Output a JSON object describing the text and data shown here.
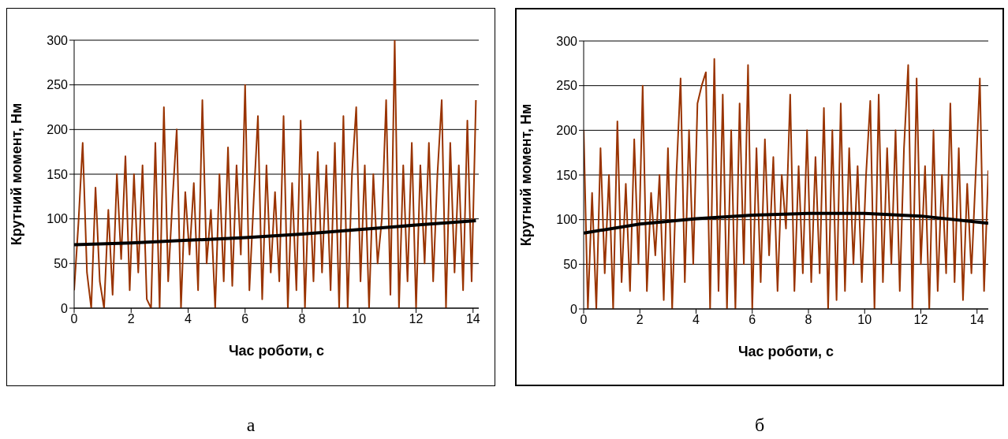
{
  "chart_data": [
    {
      "type": "line",
      "xlabel": "Час роботи, с",
      "ylabel": "Крутний момент, Нм",
      "xlim": [
        0,
        14.2
      ],
      "xticks": [
        0,
        2,
        4,
        6,
        8,
        10,
        12,
        14
      ],
      "ylim": [
        0,
        300
      ],
      "yticks": [
        0,
        50,
        100,
        150,
        200,
        250,
        300
      ],
      "grid": "y",
      "marker": "none",
      "line_style": "solid",
      "annotations": [
        "а"
      ],
      "series": [
        {
          "color": "#993300",
          "x": [
            0,
            0.15,
            0.3,
            0.45,
            0.6,
            0.75,
            0.9,
            1.05,
            1.2,
            1.35,
            1.5,
            1.65,
            1.8,
            1.95,
            2.1,
            2.25,
            2.4,
            2.55,
            2.7,
            2.85,
            3,
            3.15,
            3.3,
            3.45,
            3.6,
            3.75,
            3.9,
            4.05,
            4.2,
            4.35,
            4.5,
            4.65,
            4.8,
            4.95,
            5.1,
            5.25,
            5.4,
            5.55,
            5.7,
            5.85,
            6,
            6.15,
            6.3,
            6.45,
            6.6,
            6.75,
            6.9,
            7.05,
            7.2,
            7.35,
            7.5,
            7.65,
            7.8,
            7.95,
            8.1,
            8.25,
            8.4,
            8.55,
            8.7,
            8.85,
            9,
            9.15,
            9.3,
            9.45,
            9.6,
            9.75,
            9.9,
            10.05,
            10.2,
            10.35,
            10.5,
            10.65,
            10.8,
            10.95,
            11.1,
            11.25,
            11.4,
            11.55,
            11.7,
            11.85,
            12,
            12.15,
            12.3,
            12.45,
            12.6,
            12.75,
            12.9,
            13.05,
            13.2,
            13.35,
            13.5,
            13.65,
            13.8,
            13.95,
            14.1
          ],
          "values": [
            20,
            95,
            185,
            40,
            0,
            135,
            30,
            0,
            110,
            15,
            150,
            55,
            170,
            20,
            150,
            40,
            160,
            10,
            0,
            185,
            0,
            225,
            30,
            120,
            200,
            0,
            130,
            60,
            140,
            20,
            233,
            50,
            110,
            0,
            150,
            30,
            180,
            25,
            160,
            60,
            250,
            20,
            120,
            215,
            10,
            160,
            40,
            130,
            30,
            215,
            0,
            140,
            20,
            210,
            0,
            150,
            30,
            175,
            40,
            160,
            20,
            185,
            0,
            215,
            0,
            150,
            225,
            30,
            160,
            0,
            150,
            50,
            100,
            233,
            15,
            300,
            0,
            160,
            30,
            185,
            0,
            160,
            50,
            185,
            30,
            150,
            233,
            0,
            185,
            40,
            160,
            20,
            210,
            30,
            233
          ]
        },
        {
          "color": "#000000",
          "x": [
            0,
            2,
            4,
            6,
            8,
            10,
            12,
            14.1
          ],
          "values": [
            71,
            73,
            76,
            79,
            83,
            88,
            93,
            98
          ]
        }
      ]
    },
    {
      "type": "line",
      "xlabel": "Час роботи, с",
      "ylabel": "Крутний момент, Нм",
      "xlim": [
        0,
        14.4
      ],
      "xticks": [
        0,
        2,
        4,
        6,
        8,
        10,
        12,
        14
      ],
      "ylim": [
        0,
        300
      ],
      "yticks": [
        0,
        50,
        100,
        150,
        200,
        250,
        300
      ],
      "grid": "y",
      "marker": "none",
      "line_style": "solid",
      "annotations": [
        "б"
      ],
      "series": [
        {
          "color": "#993300",
          "x": [
            0,
            0.15,
            0.3,
            0.45,
            0.6,
            0.75,
            0.9,
            1.05,
            1.2,
            1.35,
            1.5,
            1.65,
            1.8,
            1.95,
            2.1,
            2.25,
            2.4,
            2.55,
            2.7,
            2.85,
            3,
            3.15,
            3.3,
            3.45,
            3.6,
            3.75,
            3.9,
            4.05,
            4.2,
            4.35,
            4.5,
            4.65,
            4.8,
            4.95,
            5.1,
            5.25,
            5.4,
            5.55,
            5.7,
            5.85,
            6,
            6.15,
            6.3,
            6.45,
            6.6,
            6.75,
            6.9,
            7.05,
            7.2,
            7.35,
            7.5,
            7.65,
            7.8,
            7.95,
            8.1,
            8.25,
            8.4,
            8.55,
            8.7,
            8.85,
            9,
            9.15,
            9.3,
            9.45,
            9.6,
            9.75,
            9.9,
            10.05,
            10.2,
            10.35,
            10.5,
            10.65,
            10.8,
            10.95,
            11.1,
            11.25,
            11.4,
            11.55,
            11.7,
            11.85,
            12,
            12.15,
            12.3,
            12.45,
            12.6,
            12.75,
            12.9,
            13.05,
            13.2,
            13.35,
            13.5,
            13.65,
            13.8,
            13.95,
            14.1,
            14.25,
            14.4
          ],
          "values": [
            200,
            0,
            130,
            0,
            180,
            40,
            150,
            0,
            210,
            30,
            140,
            20,
            190,
            50,
            250,
            20,
            130,
            60,
            150,
            10,
            180,
            0,
            150,
            258,
            30,
            200,
            50,
            230,
            250,
            265,
            0,
            280,
            20,
            240,
            0,
            200,
            0,
            230,
            50,
            273,
            0,
            180,
            30,
            190,
            60,
            170,
            20,
            150,
            90,
            240,
            20,
            160,
            40,
            200,
            30,
            170,
            40,
            225,
            0,
            200,
            10,
            230,
            20,
            180,
            50,
            160,
            30,
            150,
            233,
            0,
            240,
            30,
            180,
            50,
            200,
            20,
            180,
            273,
            0,
            258,
            50,
            160,
            0,
            200,
            20,
            150,
            40,
            230,
            30,
            180,
            10,
            140,
            40,
            150,
            258,
            20,
            155
          ]
        },
        {
          "color": "#000000",
          "x": [
            0,
            2,
            4,
            6,
            8,
            10,
            12,
            14.4
          ],
          "values": [
            85,
            95,
            101,
            105,
            107,
            107,
            104,
            96
          ]
        }
      ]
    }
  ]
}
